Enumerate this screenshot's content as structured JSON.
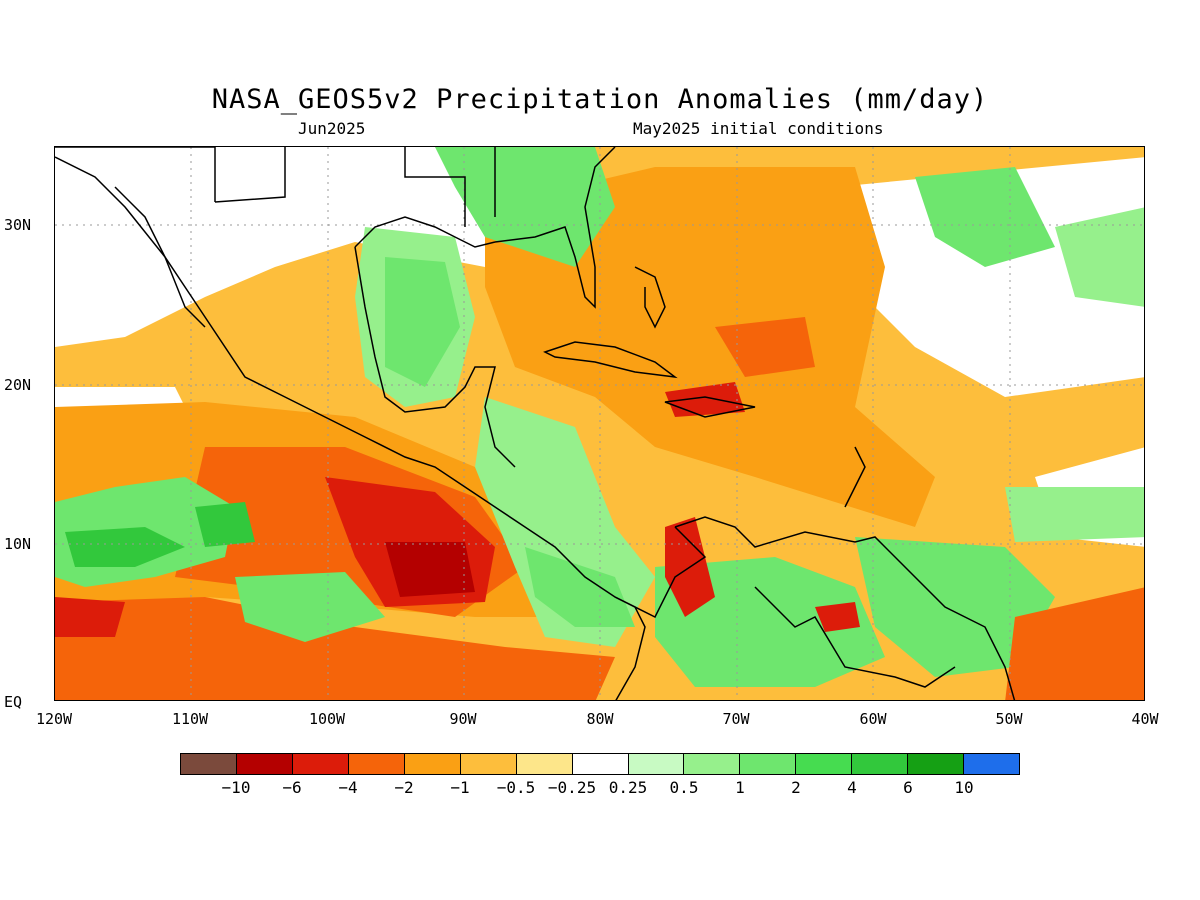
{
  "title": "NASA_GEOS5v2 Precipitation Anomalies (mm/day)",
  "subtitle_left": "Jun2025",
  "subtitle_right": "May2025 initial conditions",
  "axes": {
    "y_labels": [
      "30N",
      "20N",
      "10N",
      "EQ"
    ],
    "x_labels": [
      "120W",
      "110W",
      "100W",
      "90W",
      "80W",
      "70W",
      "60W",
      "50W",
      "40W"
    ]
  },
  "colorbar": {
    "colors": [
      "#7b4a3c",
      "#b40000",
      "#dc1c0a",
      "#f5640a",
      "#faa014",
      "#fdbe3c",
      "#fde68a",
      "#ffffff",
      "#c8fac3",
      "#96f08c",
      "#6ee66e",
      "#46dc50",
      "#32c83c",
      "#15a014",
      "#1e6eeb"
    ],
    "labels": [
      "−10",
      "−6",
      "−4",
      "−2",
      "−1",
      "−0.5",
      "−0.25",
      "0.25",
      "0.5",
      "1",
      "2",
      "4",
      "6",
      "10"
    ]
  },
  "palette": {
    "dry_strong": "#b40000",
    "dry": "#f5640a",
    "dry_weak": "#faa014",
    "dry_light": "#fdbe3c",
    "neutral": "#ffffff",
    "wet_light": "#c8fac3",
    "wet": "#6ee66e",
    "wet_strong": "#32c83c",
    "wet_max": "#1e6eeb",
    "coast": "#000000",
    "grid": "#999999"
  }
}
